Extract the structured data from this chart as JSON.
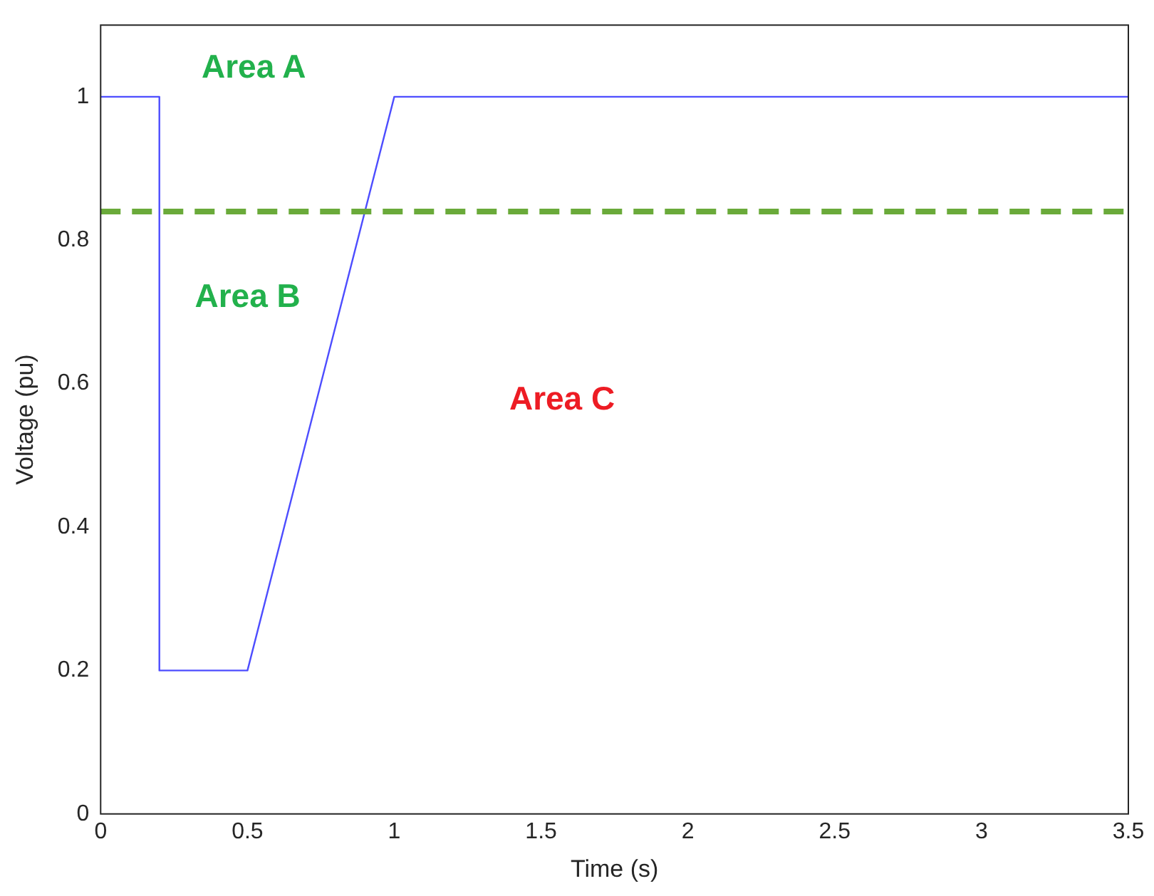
{
  "chart_data": {
    "type": "line",
    "xlabel": "Time (s)",
    "ylabel": "Voltage (pu)",
    "x": [
      0,
      0.2,
      0.2,
      0.5,
      1,
      3.5
    ],
    "series": [
      {
        "color": "#4d4dff",
        "values": [
          1,
          1,
          0.2,
          0.2,
          1,
          1
        ]
      }
    ],
    "xlim": [
      0,
      3.5
    ],
    "xticks": [
      0,
      0.5,
      1,
      1.5,
      2,
      2.5,
      3,
      3.5
    ],
    "ylim": [
      0,
      1.1
    ],
    "yticks": [
      0,
      0.2,
      0.4,
      0.6,
      0.8,
      1
    ],
    "grid": false,
    "legend": false,
    "marker": "none",
    "line_style": "solid",
    "ref_lines": [
      {
        "axis": "y",
        "value": 0.84,
        "color": "#6aaa3a",
        "line_style": "dashed"
      }
    ],
    "annotations": [
      "Area A",
      "Area B",
      "Area C"
    ]
  }
}
